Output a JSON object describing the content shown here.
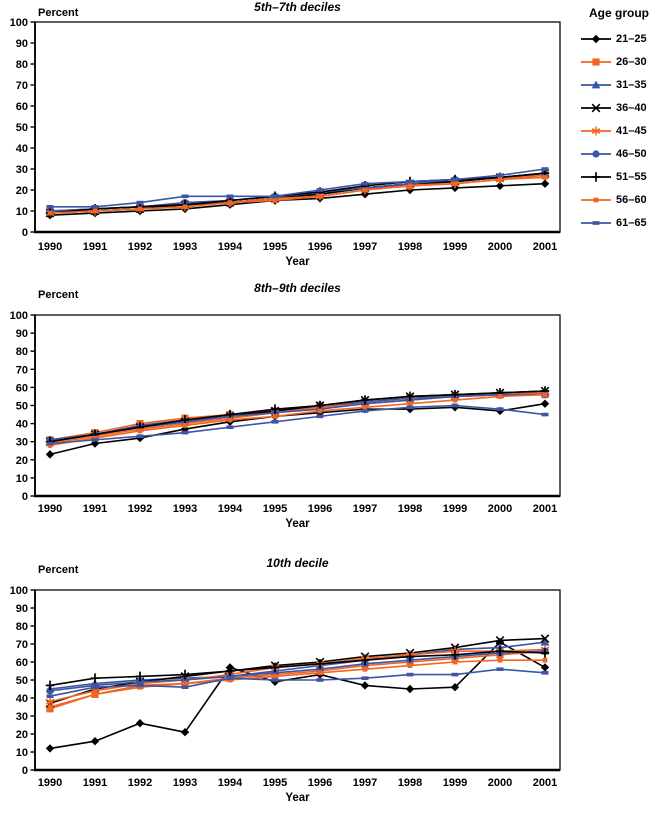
{
  "legend": {
    "title": "Age group",
    "entries": [
      {
        "label": "21–25",
        "color": "#000000",
        "marker": "diamond"
      },
      {
        "label": "26–30",
        "color": "#F26522",
        "marker": "square"
      },
      {
        "label": "31–35",
        "color": "#3C55A5",
        "marker": "triangle"
      },
      {
        "label": "36–40",
        "color": "#000000",
        "marker": "x"
      },
      {
        "label": "41–45",
        "color": "#F26522",
        "marker": "asterisk"
      },
      {
        "label": "46–50",
        "color": "#3C55A5",
        "marker": "circle"
      },
      {
        "label": "51–55",
        "color": "#000000",
        "marker": "plus"
      },
      {
        "label": "56–60",
        "color": "#F26522",
        "marker": "dash-square"
      },
      {
        "label": "61–65",
        "color": "#3C55A5",
        "marker": "dash"
      }
    ]
  },
  "colors": {
    "black": "#000000",
    "orange": "#F26522",
    "blue": "#3C55A5",
    "axis": "#1a1a1a"
  },
  "chart_data": [
    {
      "type": "line",
      "title": "5th–7th deciles",
      "xlabel": "Year",
      "ylabel": "Percent",
      "ylim": [
        0,
        100
      ],
      "ytick_step": 10,
      "grid": false,
      "legend_position": "right-top",
      "x": [
        1990,
        1991,
        1992,
        1993,
        1994,
        1995,
        1996,
        1997,
        1998,
        1999,
        2000,
        2001
      ],
      "series": [
        {
          "name": "21–25",
          "values": [
            8,
            9,
            10,
            11,
            13,
            15,
            16,
            18,
            20,
            21,
            22,
            23
          ]
        },
        {
          "name": "26–30",
          "values": [
            10,
            11,
            12,
            13,
            14,
            16,
            18,
            21,
            22,
            24,
            26,
            27
          ]
        },
        {
          "name": "31–35",
          "values": [
            10,
            11,
            12,
            13,
            15,
            17,
            18,
            21,
            23,
            24,
            26,
            28
          ]
        },
        {
          "name": "36–40",
          "values": [
            9,
            10,
            11,
            13,
            14,
            16,
            18,
            21,
            23,
            24,
            26,
            28
          ]
        },
        {
          "name": "41–45",
          "values": [
            9,
            10,
            11,
            12,
            14,
            16,
            17,
            20,
            22,
            23,
            25,
            27
          ]
        },
        {
          "name": "46–50",
          "values": [
            10,
            11,
            12,
            14,
            15,
            17,
            19,
            21,
            23,
            25,
            26,
            28
          ]
        },
        {
          "name": "51–55",
          "values": [
            9,
            11,
            12,
            13,
            15,
            17,
            19,
            22,
            24,
            25,
            26,
            28
          ]
        },
        {
          "name": "56–60",
          "values": [
            9,
            10,
            11,
            12,
            14,
            15,
            17,
            20,
            22,
            23,
            25,
            26
          ]
        },
        {
          "name": "61–65",
          "values": [
            12,
            12,
            14,
            17,
            17,
            17,
            20,
            23,
            24,
            25,
            27,
            30
          ]
        }
      ]
    },
    {
      "type": "line",
      "title": "8th–9th deciles",
      "xlabel": "Year",
      "ylabel": "Percent",
      "ylim": [
        0,
        100
      ],
      "ytick_step": 10,
      "grid": false,
      "x": [
        1990,
        1991,
        1992,
        1993,
        1994,
        1995,
        1996,
        1997,
        1998,
        1999,
        2000,
        2001
      ],
      "series": [
        {
          "name": "21–25",
          "values": [
            23,
            29,
            32,
            37,
            41,
            44,
            46,
            48,
            48,
            49,
            47,
            51
          ]
        },
        {
          "name": "26–30",
          "values": [
            31,
            35,
            40,
            43,
            45,
            47,
            50,
            52,
            54,
            55,
            56,
            56
          ]
        },
        {
          "name": "31–35",
          "values": [
            31,
            34,
            39,
            42,
            44,
            47,
            49,
            52,
            54,
            55,
            56,
            57
          ]
        },
        {
          "name": "36–40",
          "values": [
            30,
            34,
            38,
            41,
            44,
            47,
            50,
            53,
            55,
            56,
            57,
            58
          ]
        },
        {
          "name": "41–45",
          "values": [
            29,
            33,
            37,
            40,
            43,
            46,
            49,
            51,
            53,
            55,
            56,
            57
          ]
        },
        {
          "name": "46–50",
          "values": [
            31,
            34,
            38,
            41,
            44,
            46,
            48,
            51,
            53,
            55,
            56,
            56
          ]
        },
        {
          "name": "51–55",
          "values": [
            30,
            34,
            38,
            42,
            45,
            48,
            50,
            53,
            55,
            56,
            57,
            58
          ]
        },
        {
          "name": "56–60",
          "values": [
            28,
            32,
            36,
            39,
            42,
            44,
            47,
            49,
            51,
            53,
            55,
            56
          ]
        },
        {
          "name": "61–65",
          "values": [
            29,
            31,
            33,
            35,
            38,
            41,
            44,
            47,
            49,
            50,
            48,
            45
          ]
        }
      ]
    },
    {
      "type": "line",
      "title": "10th decile",
      "xlabel": "Year",
      "ylabel": "Percent",
      "ylim": [
        0,
        100
      ],
      "ytick_step": 10,
      "grid": false,
      "x": [
        1990,
        1991,
        1992,
        1993,
        1994,
        1995,
        1996,
        1997,
        1998,
        1999,
        2000,
        2001
      ],
      "series": [
        {
          "name": "21–25",
          "values": [
            12,
            16,
            26,
            21,
            57,
            49,
            53,
            47,
            45,
            46,
            71,
            57
          ]
        },
        {
          "name": "26–30",
          "values": [
            34,
            42,
            47,
            48,
            51,
            53,
            55,
            58,
            60,
            62,
            64,
            66
          ]
        },
        {
          "name": "31–35",
          "values": [
            45,
            48,
            50,
            51,
            52,
            55,
            58,
            61,
            64,
            67,
            68,
            71
          ]
        },
        {
          "name": "36–40",
          "values": [
            37,
            45,
            49,
            52,
            55,
            58,
            60,
            63,
            65,
            68,
            72,
            73
          ]
        },
        {
          "name": "41–45",
          "values": [
            38,
            44,
            48,
            50,
            53,
            57,
            59,
            62,
            64,
            66,
            66,
            67
          ]
        },
        {
          "name": "46–50",
          "values": [
            44,
            47,
            49,
            50,
            52,
            54,
            56,
            59,
            61,
            63,
            65,
            66
          ]
        },
        {
          "name": "51–55",
          "values": [
            47,
            51,
            52,
            53,
            55,
            57,
            59,
            61,
            63,
            64,
            66,
            65
          ]
        },
        {
          "name": "56–60",
          "values": [
            35,
            42,
            46,
            48,
            50,
            52,
            54,
            56,
            58,
            60,
            61,
            61
          ]
        },
        {
          "name": "61–65",
          "values": [
            41,
            46,
            47,
            46,
            51,
            50,
            50,
            51,
            53,
            53,
            56,
            54
          ]
        }
      ]
    }
  ]
}
